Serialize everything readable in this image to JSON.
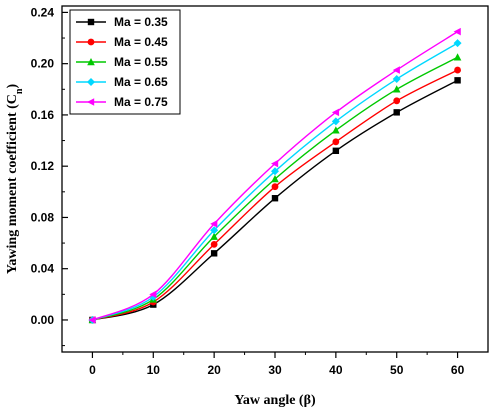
{
  "chart_data": {
    "type": "line",
    "xlabel": "Yaw angle (β)",
    "ylabel_main": "Yawing moment coefficient (C",
    "ylabel_sub": "n",
    "ylabel_close": ")",
    "xlim": [
      -5,
      65
    ],
    "ylim": [
      -0.025,
      0.245
    ],
    "xticks": [
      0,
      10,
      20,
      30,
      40,
      50,
      60
    ],
    "yticks": [
      0.0,
      0.04,
      0.08,
      0.12,
      0.16,
      0.2,
      0.24
    ],
    "x": [
      0,
      10,
      20,
      30,
      40,
      50,
      60
    ],
    "legend_position": "top-left",
    "series": [
      {
        "name": "Ma = 0.35",
        "color": "#000000",
        "marker": "square",
        "values": [
          0.0,
          0.012,
          0.052,
          0.095,
          0.132,
          0.162,
          0.187
        ]
      },
      {
        "name": "Ma = 0.45",
        "color": "#ff0000",
        "marker": "circle",
        "values": [
          0.0,
          0.014,
          0.059,
          0.104,
          0.139,
          0.171,
          0.195
        ]
      },
      {
        "name": "Ma = 0.55",
        "color": "#00c800",
        "marker": "triangle-up",
        "values": [
          0.0,
          0.016,
          0.065,
          0.11,
          0.148,
          0.18,
          0.205
        ]
      },
      {
        "name": "Ma = 0.65",
        "color": "#00d8ff",
        "marker": "diamond",
        "values": [
          0.0,
          0.018,
          0.07,
          0.116,
          0.155,
          0.188,
          0.216
        ]
      },
      {
        "name": "Ma = 0.75",
        "color": "#ff00ff",
        "marker": "triangle-left",
        "values": [
          0.0,
          0.02,
          0.075,
          0.122,
          0.162,
          0.195,
          0.225
        ]
      }
    ]
  }
}
